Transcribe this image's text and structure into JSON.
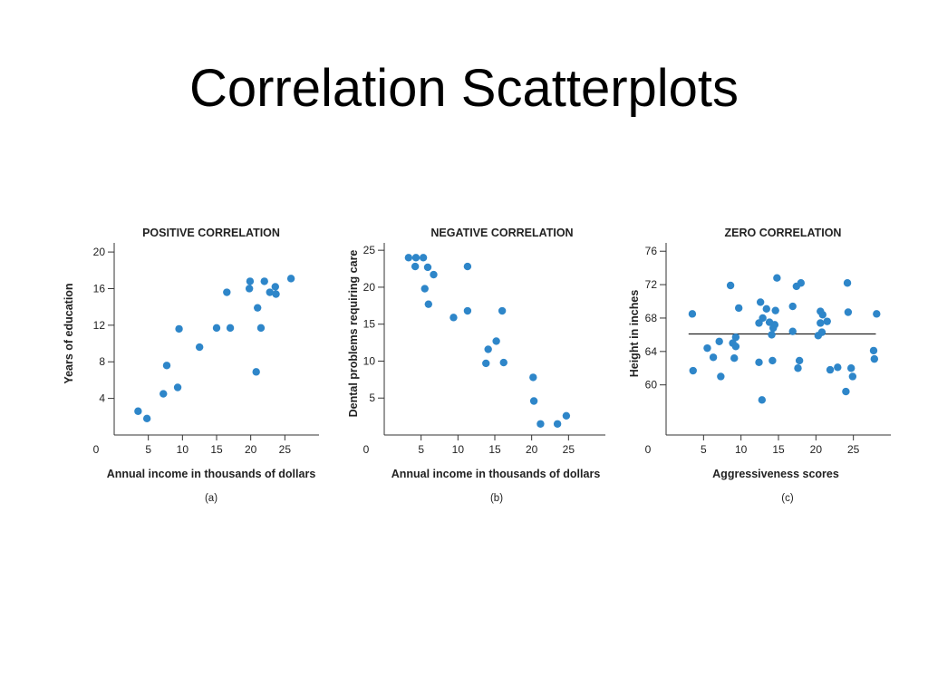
{
  "title": "Correlation Scatterplots",
  "point_color": "#2e86c9",
  "chart_data": [
    {
      "type": "scatter",
      "title": "POSITIVE CORRELATION",
      "xlabel": "Annual income in thousands of dollars",
      "ylabel": "Years of education",
      "caption": "(a)",
      "xlim": [
        0,
        30
      ],
      "ylim": [
        0,
        21
      ],
      "x_ticks": [
        0,
        5,
        10,
        15,
        20,
        25
      ],
      "y_ticks": [
        4,
        8,
        12,
        16,
        20
      ],
      "grid": false,
      "points": [
        {
          "x": 3.5,
          "y": 2.6
        },
        {
          "x": 4.8,
          "y": 1.8
        },
        {
          "x": 7.2,
          "y": 4.5
        },
        {
          "x": 7.7,
          "y": 7.6
        },
        {
          "x": 9.3,
          "y": 5.2
        },
        {
          "x": 9.5,
          "y": 11.6
        },
        {
          "x": 12.5,
          "y": 9.6
        },
        {
          "x": 15.0,
          "y": 11.7
        },
        {
          "x": 16.5,
          "y": 15.6
        },
        {
          "x": 17.0,
          "y": 11.7
        },
        {
          "x": 19.8,
          "y": 16.0
        },
        {
          "x": 19.9,
          "y": 16.8
        },
        {
          "x": 20.8,
          "y": 6.9
        },
        {
          "x": 21.0,
          "y": 13.9
        },
        {
          "x": 21.5,
          "y": 11.7
        },
        {
          "x": 22.0,
          "y": 16.8
        },
        {
          "x": 22.8,
          "y": 15.6
        },
        {
          "x": 23.6,
          "y": 16.2
        },
        {
          "x": 23.7,
          "y": 15.4
        },
        {
          "x": 25.9,
          "y": 17.1
        }
      ]
    },
    {
      "type": "scatter",
      "title": "NEGATIVE CORRELATION",
      "xlabel": "Annual income in thousands of dollars",
      "ylabel": "Dental problems requiring care",
      "caption": "(b)",
      "xlim": [
        0,
        30
      ],
      "ylim": [
        0,
        26
      ],
      "x_ticks": [
        0,
        5,
        10,
        15,
        20,
        25
      ],
      "y_ticks": [
        5,
        10,
        15,
        20,
        25
      ],
      "grid": false,
      "points": [
        {
          "x": 3.3,
          "y": 24.0
        },
        {
          "x": 4.2,
          "y": 22.8
        },
        {
          "x": 4.3,
          "y": 24.0
        },
        {
          "x": 5.3,
          "y": 24.0
        },
        {
          "x": 5.5,
          "y": 19.8
        },
        {
          "x": 5.9,
          "y": 22.7
        },
        {
          "x": 6.0,
          "y": 17.7
        },
        {
          "x": 6.7,
          "y": 21.7
        },
        {
          "x": 9.4,
          "y": 15.9
        },
        {
          "x": 11.3,
          "y": 22.8
        },
        {
          "x": 11.3,
          "y": 16.8
        },
        {
          "x": 13.8,
          "y": 9.7
        },
        {
          "x": 14.1,
          "y": 11.6
        },
        {
          "x": 15.2,
          "y": 12.7
        },
        {
          "x": 16.0,
          "y": 16.8
        },
        {
          "x": 16.2,
          "y": 9.8
        },
        {
          "x": 20.2,
          "y": 7.8
        },
        {
          "x": 20.3,
          "y": 4.6
        },
        {
          "x": 21.2,
          "y": 1.5
        },
        {
          "x": 23.5,
          "y": 1.5
        },
        {
          "x": 24.7,
          "y": 2.6
        }
      ]
    },
    {
      "type": "scatter",
      "title": "ZERO CORRELATION",
      "xlabel": "Aggressiveness scores",
      "ylabel": "Height in inches",
      "caption": "(c)",
      "xlim": [
        0,
        30
      ],
      "ylim": [
        54,
        77
      ],
      "x_ticks": [
        0,
        5,
        10,
        15,
        20,
        25
      ],
      "y_ticks": [
        60,
        64,
        68,
        72,
        76
      ],
      "grid": false,
      "trend_line": {
        "x": [
          3,
          28
        ],
        "y": [
          66.1,
          66.1
        ]
      },
      "points": [
        {
          "x": 3.5,
          "y": 68.5
        },
        {
          "x": 3.6,
          "y": 61.7
        },
        {
          "x": 5.5,
          "y": 64.4
        },
        {
          "x": 6.3,
          "y": 63.3
        },
        {
          "x": 7.1,
          "y": 65.2
        },
        {
          "x": 7.3,
          "y": 61.0
        },
        {
          "x": 8.6,
          "y": 71.9
        },
        {
          "x": 8.9,
          "y": 65.0
        },
        {
          "x": 9.1,
          "y": 63.2
        },
        {
          "x": 9.3,
          "y": 64.6
        },
        {
          "x": 9.3,
          "y": 65.7
        },
        {
          "x": 9.7,
          "y": 69.2
        },
        {
          "x": 12.4,
          "y": 67.4
        },
        {
          "x": 12.4,
          "y": 62.7
        },
        {
          "x": 12.6,
          "y": 69.9
        },
        {
          "x": 12.8,
          "y": 58.2
        },
        {
          "x": 12.9,
          "y": 68.0
        },
        {
          "x": 13.4,
          "y": 69.1
        },
        {
          "x": 13.8,
          "y": 67.5
        },
        {
          "x": 14.1,
          "y": 66.0
        },
        {
          "x": 14.2,
          "y": 62.9
        },
        {
          "x": 14.3,
          "y": 66.8
        },
        {
          "x": 14.5,
          "y": 67.2
        },
        {
          "x": 14.6,
          "y": 68.9
        },
        {
          "x": 14.8,
          "y": 72.8
        },
        {
          "x": 16.9,
          "y": 69.4
        },
        {
          "x": 16.9,
          "y": 66.4
        },
        {
          "x": 17.4,
          "y": 71.8
        },
        {
          "x": 17.6,
          "y": 62.0
        },
        {
          "x": 17.8,
          "y": 62.9
        },
        {
          "x": 18.0,
          "y": 72.2
        },
        {
          "x": 20.3,
          "y": 65.9
        },
        {
          "x": 20.6,
          "y": 68.8
        },
        {
          "x": 20.6,
          "y": 67.4
        },
        {
          "x": 20.8,
          "y": 66.3
        },
        {
          "x": 20.9,
          "y": 68.4
        },
        {
          "x": 21.5,
          "y": 67.6
        },
        {
          "x": 21.9,
          "y": 61.8
        },
        {
          "x": 22.9,
          "y": 62.1
        },
        {
          "x": 24.0,
          "y": 59.2
        },
        {
          "x": 24.2,
          "y": 72.2
        },
        {
          "x": 24.3,
          "y": 68.7
        },
        {
          "x": 24.7,
          "y": 62.0
        },
        {
          "x": 24.9,
          "y": 61.0
        },
        {
          "x": 27.7,
          "y": 64.1
        },
        {
          "x": 27.8,
          "y": 63.1
        },
        {
          "x": 28.1,
          "y": 68.5
        }
      ]
    }
  ]
}
